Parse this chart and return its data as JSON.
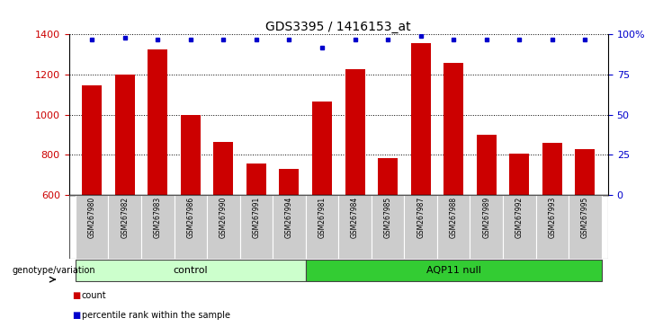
{
  "title": "GDS3395 / 1416153_at",
  "samples": [
    "GSM267980",
    "GSM267982",
    "GSM267983",
    "GSM267986",
    "GSM267990",
    "GSM267991",
    "GSM267994",
    "GSM267981",
    "GSM267984",
    "GSM267985",
    "GSM267987",
    "GSM267988",
    "GSM267989",
    "GSM267992",
    "GSM267993",
    "GSM267995"
  ],
  "counts": [
    1145,
    1200,
    1325,
    1000,
    865,
    755,
    730,
    1065,
    1225,
    785,
    1355,
    1260,
    900,
    805,
    860,
    830
  ],
  "percentile_ranks": [
    97,
    98,
    97,
    97,
    97,
    97,
    97,
    92,
    97,
    97,
    99,
    97,
    97,
    97,
    97,
    97
  ],
  "control_count": 7,
  "ylim_left": [
    600,
    1400
  ],
  "ylim_right": [
    0,
    100
  ],
  "yticks_left": [
    600,
    800,
    1000,
    1200,
    1400
  ],
  "yticks_right": [
    0,
    25,
    50,
    75,
    100
  ],
  "yticklabels_right": [
    "0",
    "25",
    "50",
    "75",
    "100%"
  ],
  "bar_color": "#cc0000",
  "dot_color": "#0000cc",
  "control_bg": "#ccffcc",
  "aqp11_bg": "#33cc33",
  "sample_bg": "#cccccc",
  "grid_color": "#000000",
  "left_axis_color": "#cc0000",
  "right_axis_color": "#0000cc",
  "legend_count_color": "#cc0000",
  "legend_pct_color": "#0000cc"
}
